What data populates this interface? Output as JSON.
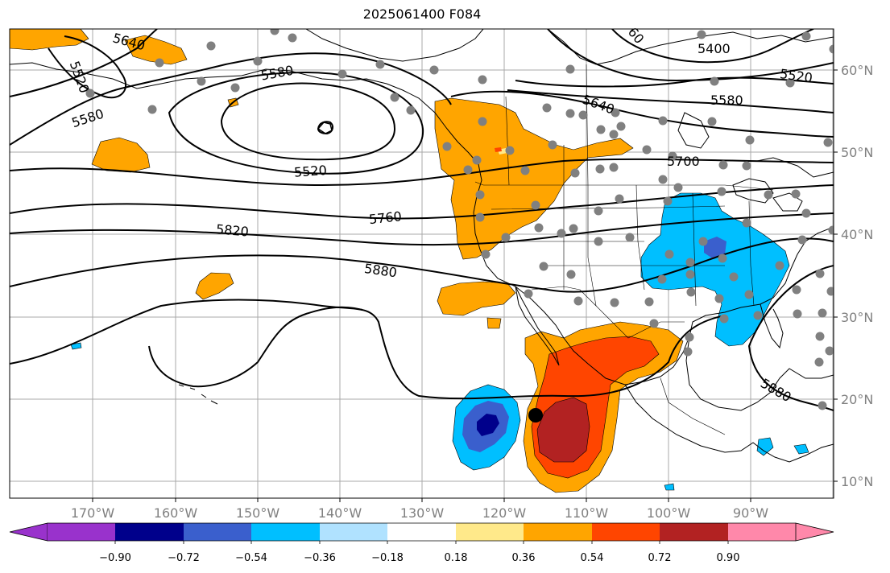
{
  "title": "2025061400 F084",
  "longitude_labels": [
    "170°W",
    "160°W",
    "150°W",
    "140°W",
    "130°W",
    "120°W",
    "110°W",
    "100°W",
    "90°W"
  ],
  "latitude_labels": [
    "60°N",
    "50°N",
    "40°N",
    "30°N",
    "20°N",
    "10°N"
  ],
  "colorbar": {
    "tick_labels": [
      "−0.90",
      "−0.72",
      "−0.54",
      "−0.36",
      "−0.18",
      "0.18",
      "0.36",
      "0.54",
      "0.72",
      "0.90"
    ],
    "colors": [
      "#9932cc",
      "#00008b",
      "#3a5fcd",
      "#00bfff",
      "#b0e2ff",
      "#ffffff",
      "#ffe98a",
      "#ffa500",
      "#ff4500",
      "#b22222",
      "#ff88aa"
    ],
    "extend": "both"
  },
  "contour_labels": [
    "5640",
    "5520",
    "5580",
    "5580",
    "5400",
    "5520",
    "5580",
    "5640",
    "5520",
    "5700",
    "5760",
    "5820",
    "5880",
    "5880",
    "60"
  ],
  "colors": {
    "land_outline": "#000000",
    "grid": "#a0a0a0",
    "station_dot": "#808080",
    "marker": "#000000"
  }
}
